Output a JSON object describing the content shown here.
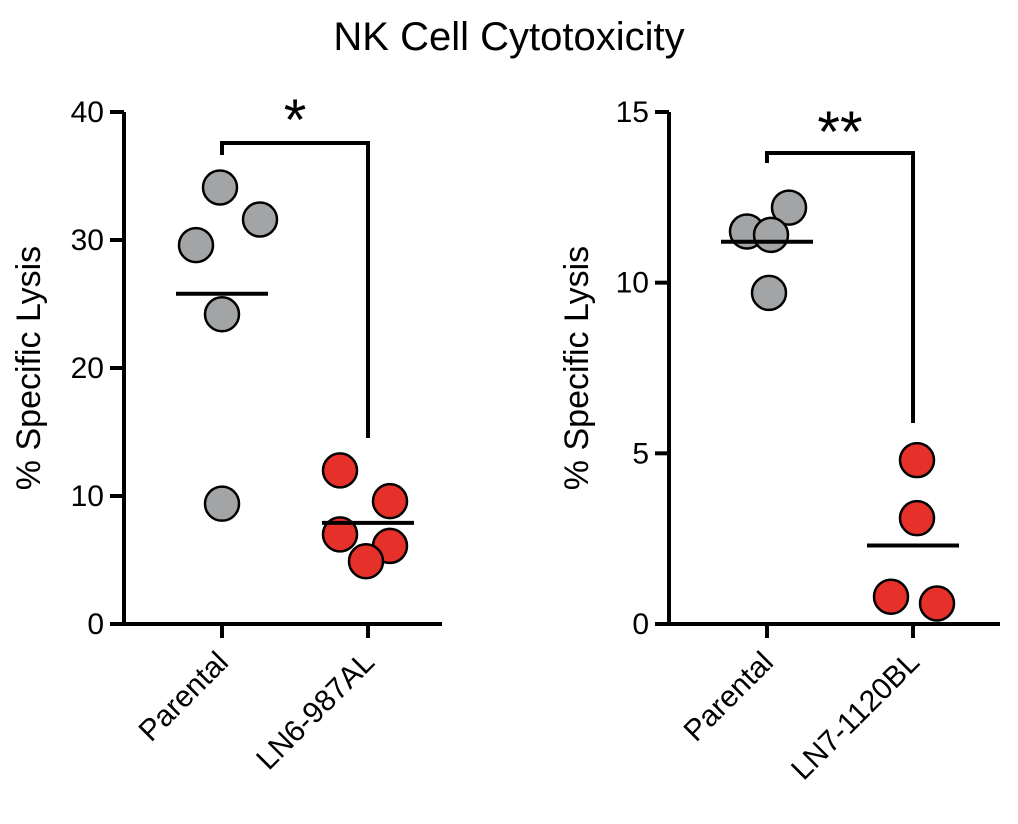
{
  "figure_title": "NK Cell Cytotoxicity",
  "colors": {
    "parental": "#a3a4a6",
    "lymph_node": "#e5312a"
  },
  "chart_data": [
    {
      "type": "scatter",
      "ylabel": "% Specific Lysis",
      "ylim": [
        0,
        40
      ],
      "yticks": [
        "0",
        "10",
        "20",
        "30",
        "40"
      ],
      "categories": [
        "Parental",
        "LN6-987AL"
      ],
      "series": [
        {
          "name": "Parental",
          "values": [
            34.1,
            31.6,
            29.6,
            24.2,
            9.4
          ],
          "mean": 25.8
        },
        {
          "name": "LN6-987AL",
          "values": [
            12.0,
            9.6,
            7.0,
            6.1,
            4.9
          ],
          "mean": 7.9
        }
      ],
      "significance": "*"
    },
    {
      "type": "scatter",
      "ylabel": "% Specific Lysis",
      "ylim": [
        0,
        15
      ],
      "yticks": [
        "0",
        "5",
        "10",
        "15"
      ],
      "categories": [
        "Parental",
        "LN7-1120BL"
      ],
      "series": [
        {
          "name": "Parental",
          "values": [
            12.2,
            11.5,
            11.4,
            9.7
          ],
          "mean": 11.2
        },
        {
          "name": "LN7-1120BL",
          "values": [
            4.8,
            3.1,
            0.8,
            0.6
          ],
          "mean": 2.3
        }
      ],
      "significance": "**"
    }
  ]
}
